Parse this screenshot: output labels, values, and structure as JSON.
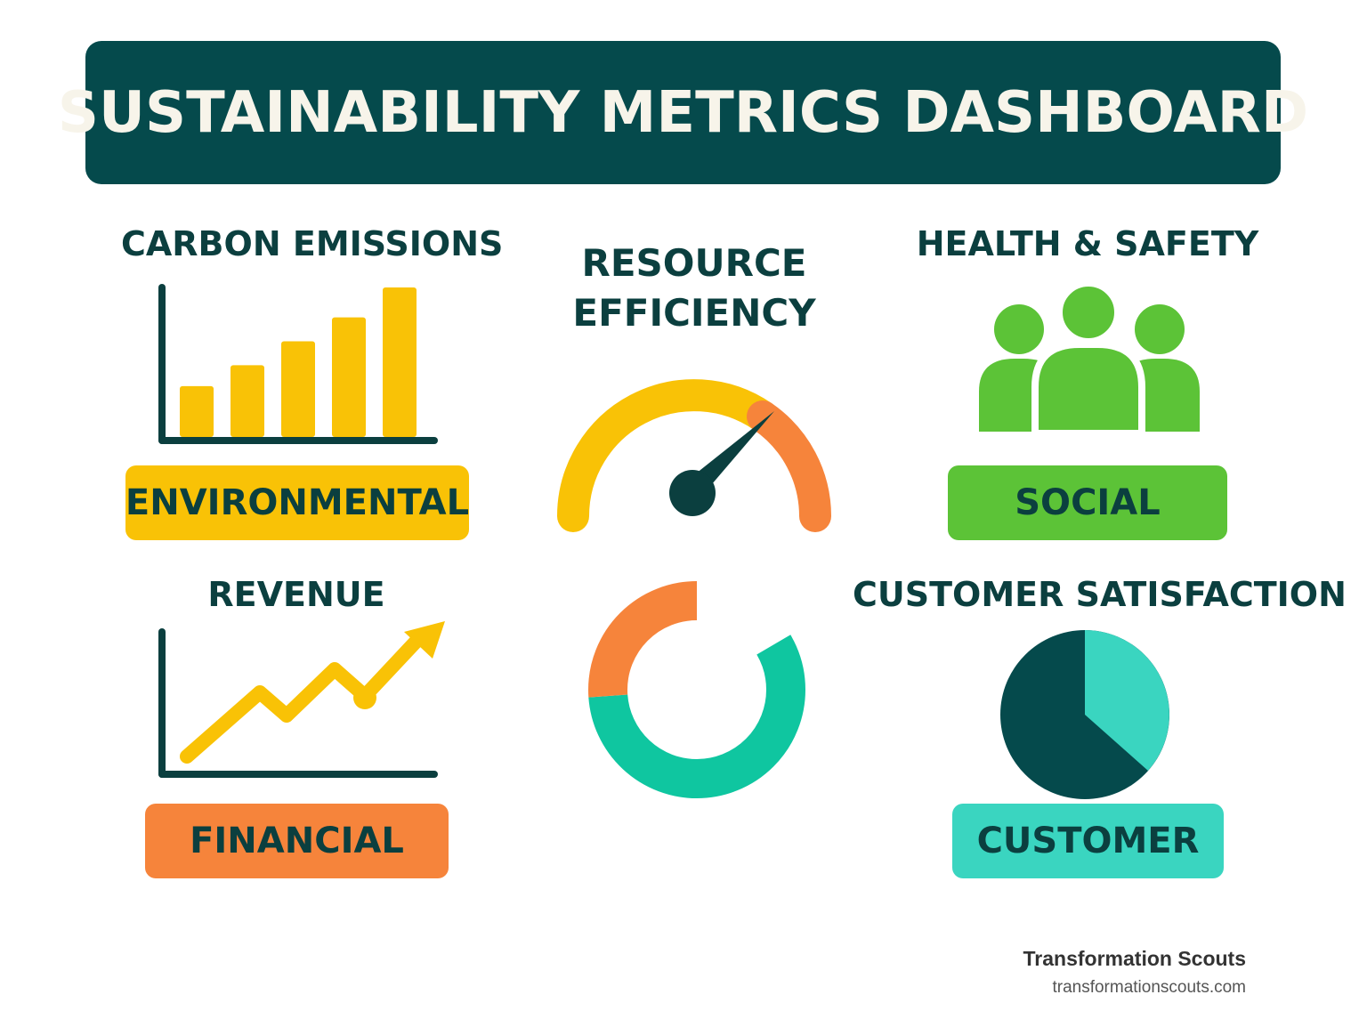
{
  "title": "SUSTAINABILITY METRICS DASHBOARD",
  "cards": {
    "carbon": {
      "heading": "CARBON EMISSIONS",
      "category": "ENVIRONMENTAL",
      "icon": "bar-chart-icon",
      "bar_levels": [
        0.34,
        0.48,
        0.64,
        0.8,
        1.0
      ]
    },
    "resource": {
      "heading_line1": "RESOURCE",
      "heading_line2": "EFFICIENCY",
      "icon": "gauge-icon"
    },
    "health": {
      "heading": "HEALTH & SAFETY",
      "category": "SOCIAL",
      "icon": "people-group-icon"
    },
    "revenue": {
      "heading": "REVENUE",
      "category": "FINANCIAL",
      "icon": "trend-arrow-icon"
    },
    "donut": {
      "icon": "donut-chart-icon"
    },
    "customer": {
      "heading": "CUSTOMER SATISFACTION",
      "category": "CUSTOMER",
      "icon": "pie-chart-icon"
    }
  },
  "colors": {
    "banner": "#054a4c",
    "dark_teal": "#0b3f3f",
    "yellow": "#f9c206",
    "orange": "#f6843b",
    "green": "#5cc337",
    "teal": "#0fc6a0",
    "aqua": "#3ad5c0"
  },
  "brand": {
    "name": "Transformation Scouts",
    "url": "transformationscouts.com"
  }
}
